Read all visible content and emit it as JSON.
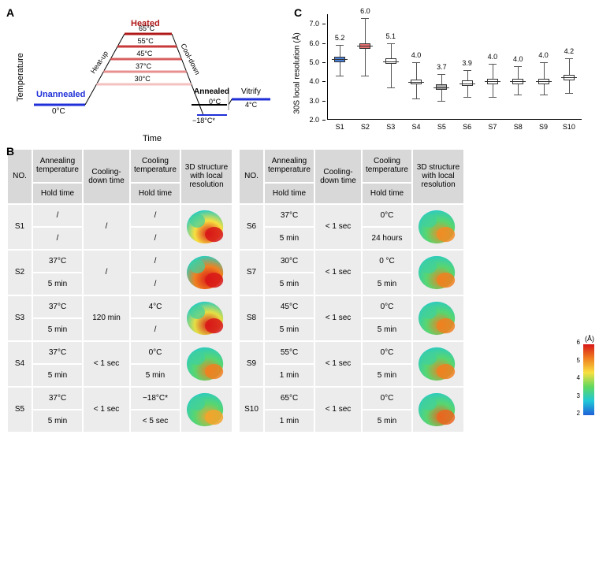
{
  "panelA": {
    "label": "A",
    "y_axis": "Temperature",
    "x_axis": "Time",
    "phases": {
      "unannealed": {
        "label": "Unannealed",
        "temp": "0°C",
        "color": "#2030d8"
      },
      "heated": {
        "label": "Heated",
        "color_top": "#b01818",
        "label_color": "#b01818"
      },
      "heat_up": "Heat-up",
      "cool_down": "Cool-down",
      "annealed": {
        "label": "Annealed",
        "temps": [
          "0°C",
          "−18°C*"
        ]
      },
      "vitrify": {
        "label": "Vitrify",
        "temp": "4°C",
        "color": "#2030d8"
      }
    },
    "heated_temps": [
      "65°C",
      "55°C",
      "45°C",
      "37°C",
      "30°C"
    ],
    "heated_colors": [
      "#b01818",
      "#c83a3a",
      "#d86060",
      "#e89090",
      "#f4c0c0"
    ]
  },
  "panelC": {
    "label": "C",
    "y_label": "30S local resolution (Å)",
    "y_ticks": [
      2.0,
      3.0,
      4.0,
      5.0,
      6.0,
      7.0
    ],
    "y_min": 2.0,
    "y_max": 7.5,
    "samples": [
      "S1",
      "S2",
      "S3",
      "S4",
      "S5",
      "S6",
      "S7",
      "S8",
      "S9",
      "S10"
    ],
    "values": [
      5.2,
      6.0,
      5.1,
      4.0,
      3.7,
      3.9,
      4.0,
      4.0,
      4.0,
      4.2
    ],
    "boxes": [
      {
        "low": 4.3,
        "q1": 5.0,
        "med": 5.15,
        "q3": 5.3,
        "hi": 5.9,
        "color": "#4a80d8"
      },
      {
        "low": 4.3,
        "q1": 5.7,
        "med": 5.85,
        "q3": 6.0,
        "hi": 7.3,
        "color": "#e87070"
      },
      {
        "low": 3.7,
        "q1": 4.9,
        "med": 5.05,
        "q3": 5.2,
        "hi": 6.0,
        "color": "#ffffff"
      },
      {
        "low": 3.1,
        "q1": 3.85,
        "med": 3.95,
        "q3": 4.1,
        "hi": 5.0,
        "color": "#ffffff"
      },
      {
        "low": 3.0,
        "q1": 3.55,
        "med": 3.7,
        "q3": 3.85,
        "hi": 4.4,
        "color": "#a8a8a8"
      },
      {
        "low": 3.2,
        "q1": 3.75,
        "med": 3.9,
        "q3": 4.05,
        "hi": 4.6,
        "color": "#ffffff"
      },
      {
        "low": 3.2,
        "q1": 3.85,
        "med": 4.0,
        "q3": 4.15,
        "hi": 4.9,
        "color": "#ffffff"
      },
      {
        "low": 3.3,
        "q1": 3.85,
        "med": 4.0,
        "q3": 4.15,
        "hi": 4.8,
        "color": "#ffffff"
      },
      {
        "low": 3.3,
        "q1": 3.85,
        "med": 4.0,
        "q3": 4.15,
        "hi": 5.0,
        "color": "#ffffff"
      },
      {
        "low": 3.4,
        "q1": 4.05,
        "med": 4.2,
        "q3": 4.35,
        "hi": 5.2,
        "color": "#ffffff"
      }
    ]
  },
  "panelB": {
    "label": "B",
    "headers": {
      "no": "NO.",
      "anneal_temp": "Annealing temperature",
      "hold1": "Hold time",
      "cool_time": "Cooling-down time",
      "cool_temp": "Cooling temperature",
      "hold2": "Hold time",
      "structure": "3D structure with local resolution"
    },
    "rows": [
      {
        "id": "S1",
        "at": "/",
        "h1": "/",
        "ct": "/",
        "clt": "/",
        "h2": "/",
        "res": 5.2
      },
      {
        "id": "S2",
        "at": "37°C",
        "h1": "5 min",
        "ct": "/",
        "clt": "/",
        "h2": "/",
        "res": 6.0
      },
      {
        "id": "S3",
        "at": "37°C",
        "h1": "5 min",
        "ct": "120 min",
        "clt": "4°C",
        "h2": "/",
        "res": 5.1
      },
      {
        "id": "S4",
        "at": "37°C",
        "h1": "5 min",
        "ct": "< 1 sec",
        "clt": "0°C",
        "h2": "5 min",
        "res": 4.0
      },
      {
        "id": "S5",
        "at": "37°C",
        "h1": "5 min",
        "ct": "< 1 sec",
        "clt": "−18°C*",
        "h2": "< 5 sec",
        "res": 3.7
      },
      {
        "id": "S6",
        "at": "37°C",
        "h1": "5 min",
        "ct": "< 1 sec",
        "clt": "0°C",
        "h2": "24 hours",
        "res": 3.9
      },
      {
        "id": "S7",
        "at": "30°C",
        "h1": "5 min",
        "ct": "< 1 sec",
        "clt": "0 °C",
        "h2": "5 min",
        "res": 4.0
      },
      {
        "id": "S8",
        "at": "45°C",
        "h1": "5 min",
        "ct": "< 1 sec",
        "clt": "0°C",
        "h2": "5 min",
        "res": 4.0
      },
      {
        "id": "S9",
        "at": "55°C",
        "h1": "1 min",
        "ct": "< 1 sec",
        "clt": "0°C",
        "h2": "5 min",
        "res": 4.0
      },
      {
        "id": "S10",
        "at": "65°C",
        "h1": "1 min",
        "ct": "< 1 sec",
        "clt": "0°C",
        "h2": "5 min",
        "res": 4.2
      }
    ],
    "resolution_legend": {
      "unit": "(Å)",
      "ticks": [
        6,
        5,
        4,
        3,
        2
      ],
      "colors": [
        "#d81818",
        "#f08020",
        "#f8e040",
        "#60d860",
        "#20c8d8",
        "#2060d8"
      ]
    }
  }
}
